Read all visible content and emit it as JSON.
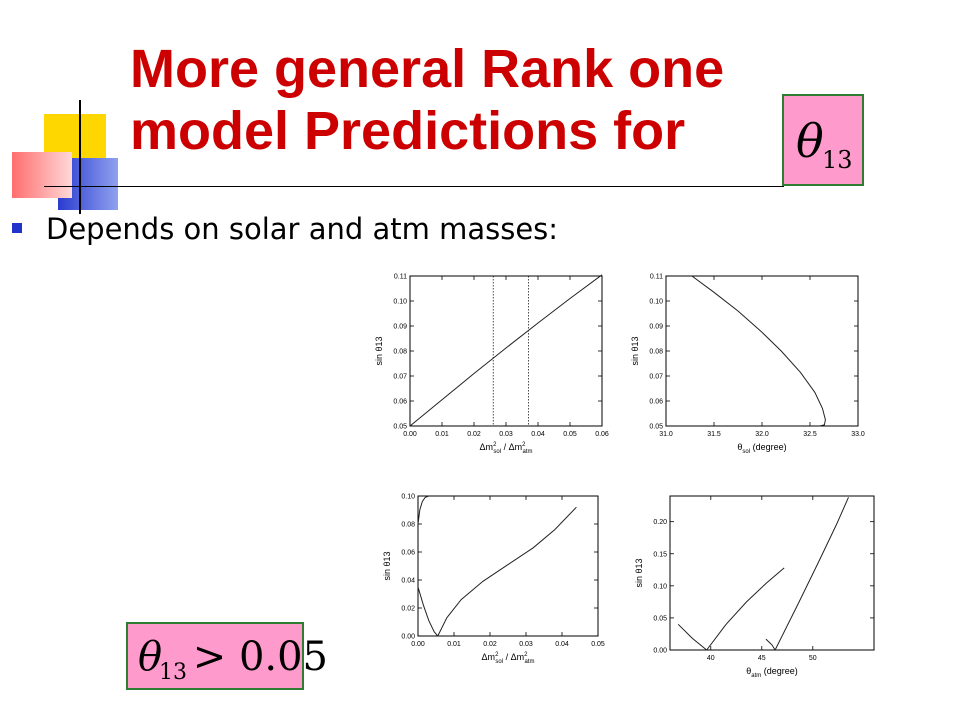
{
  "slide": {
    "title_line1": "More general Rank one",
    "title_line2": "model Predictions for",
    "title_symbol": "θ",
    "title_symbol_sub": "13",
    "bullet": "Depends on solar and atm masses:",
    "condition": {
      "symbol": "θ",
      "sub": "13",
      "rel": " > 0.05"
    }
  },
  "colors": {
    "title": "#cc0000",
    "bullet": "#2233cc",
    "math_bg": "#ff9acd",
    "math_border": "#2e7d32"
  },
  "chart_data": [
    {
      "type": "line",
      "ylabel": "sin θ13",
      "xlabel_main": "Δm",
      "xlabel_sup1": "2",
      "xlabel_sub1": "sol",
      "xlabel_mid": " / Δm",
      "xlabel_sup2": "2",
      "xlabel_sub2": "atm",
      "xlim": [
        0,
        0.06
      ],
      "ylim": [
        0.05,
        0.11
      ],
      "xticks": [
        "0.00",
        "0.01",
        "0.02",
        "0.03",
        "0.04",
        "0.05",
        "0.06"
      ],
      "yticks": [
        "0.05",
        "0.06",
        "0.07",
        "0.08",
        "0.09",
        "0.10",
        "0.11"
      ],
      "vlines": [
        0.026,
        0.037
      ],
      "series": [
        {
          "x": [
            0.0,
            0.01,
            0.02,
            0.03,
            0.04,
            0.05,
            0.06
          ],
          "y": [
            0.05,
            0.0605,
            0.071,
            0.0812,
            0.0912,
            0.101,
            0.1105
          ]
        }
      ]
    },
    {
      "type": "line",
      "ylabel": "sin θ13",
      "xlabel_main": "θ",
      "xlabel_sub1": "sol",
      "xlabel_mid": " (degree)",
      "xlim": [
        31.0,
        33.0
      ],
      "ylim": [
        0.05,
        0.11
      ],
      "xticks": [
        "31.0",
        "31.5",
        "32.0",
        "32.5",
        "33.0"
      ],
      "yticks": [
        "0.05",
        "0.06",
        "0.07",
        "0.08",
        "0.09",
        "0.10",
        "0.11"
      ],
      "series": [
        {
          "x": [
            31.27,
            31.5,
            31.75,
            32.0,
            32.2,
            32.4,
            32.55,
            32.63,
            32.66,
            32.65,
            32.6
          ],
          "y": [
            0.11,
            0.1035,
            0.096,
            0.0875,
            0.08,
            0.0715,
            0.0635,
            0.057,
            0.0525,
            0.0505,
            0.05
          ]
        }
      ]
    },
    {
      "type": "line",
      "ylabel": "sin θ13",
      "xlabel_main": "Δm",
      "xlabel_sup1": "2",
      "xlabel_sub1": "sol",
      "xlabel_mid": " / Δm",
      "xlabel_sup2": "2",
      "xlabel_sub2": "atm",
      "xlim": [
        0,
        0.05
      ],
      "ylim": [
        0,
        0.1
      ],
      "xticks": [
        "0.00",
        "0.01",
        "0.02",
        "0.03",
        "0.04",
        "0.05"
      ],
      "yticks": [
        "0.00",
        "0.02",
        "0.04",
        "0.06",
        "0.08",
        "0.10"
      ],
      "series": [
        {
          "x": [
            0.0,
            0.0005,
            0.0012,
            0.002,
            0.003
          ],
          "y": [
            0.08,
            0.09,
            0.096,
            0.099,
            0.1
          ]
        },
        {
          "x": [
            0.0,
            0.0015,
            0.003,
            0.0045,
            0.0055
          ],
          "y": [
            0.035,
            0.022,
            0.011,
            0.003,
            0.0
          ]
        },
        {
          "x": [
            0.0055,
            0.008,
            0.012,
            0.018,
            0.025,
            0.032,
            0.038,
            0.044
          ],
          "y": [
            0.0,
            0.013,
            0.026,
            0.039,
            0.051,
            0.063,
            0.076,
            0.092
          ]
        }
      ]
    },
    {
      "type": "line",
      "ylabel": "sin θ13",
      "xlabel_main": "θ",
      "xlabel_sub1": "atm",
      "xlabel_mid": " (degree)",
      "xlim": [
        36,
        56
      ],
      "ylim": [
        0,
        0.24
      ],
      "xticks": [
        "40",
        "45",
        "50"
      ],
      "xtick_values": [
        40,
        45,
        50
      ],
      "yticks": [
        "0.00",
        "0.05",
        "0.10",
        "0.15",
        "0.20"
      ],
      "ytick_values": [
        0,
        0.05,
        0.1,
        0.15,
        0.2
      ],
      "series": [
        {
          "x": [
            36.8,
            38.2,
            39.6
          ],
          "y": [
            0.04,
            0.018,
            0.0
          ]
        },
        {
          "x": [
            39.6,
            41.5,
            43.5,
            45.5,
            47.2
          ],
          "y": [
            0.0,
            0.04,
            0.075,
            0.105,
            0.128
          ]
        },
        {
          "x": [
            45.4,
            46.0,
            46.3
          ],
          "y": [
            0.017,
            0.008,
            0.0
          ]
        },
        {
          "x": [
            46.3,
            48.5,
            50.5,
            52.3,
            53.5
          ],
          "y": [
            0.0,
            0.07,
            0.135,
            0.195,
            0.238
          ]
        }
      ]
    }
  ]
}
